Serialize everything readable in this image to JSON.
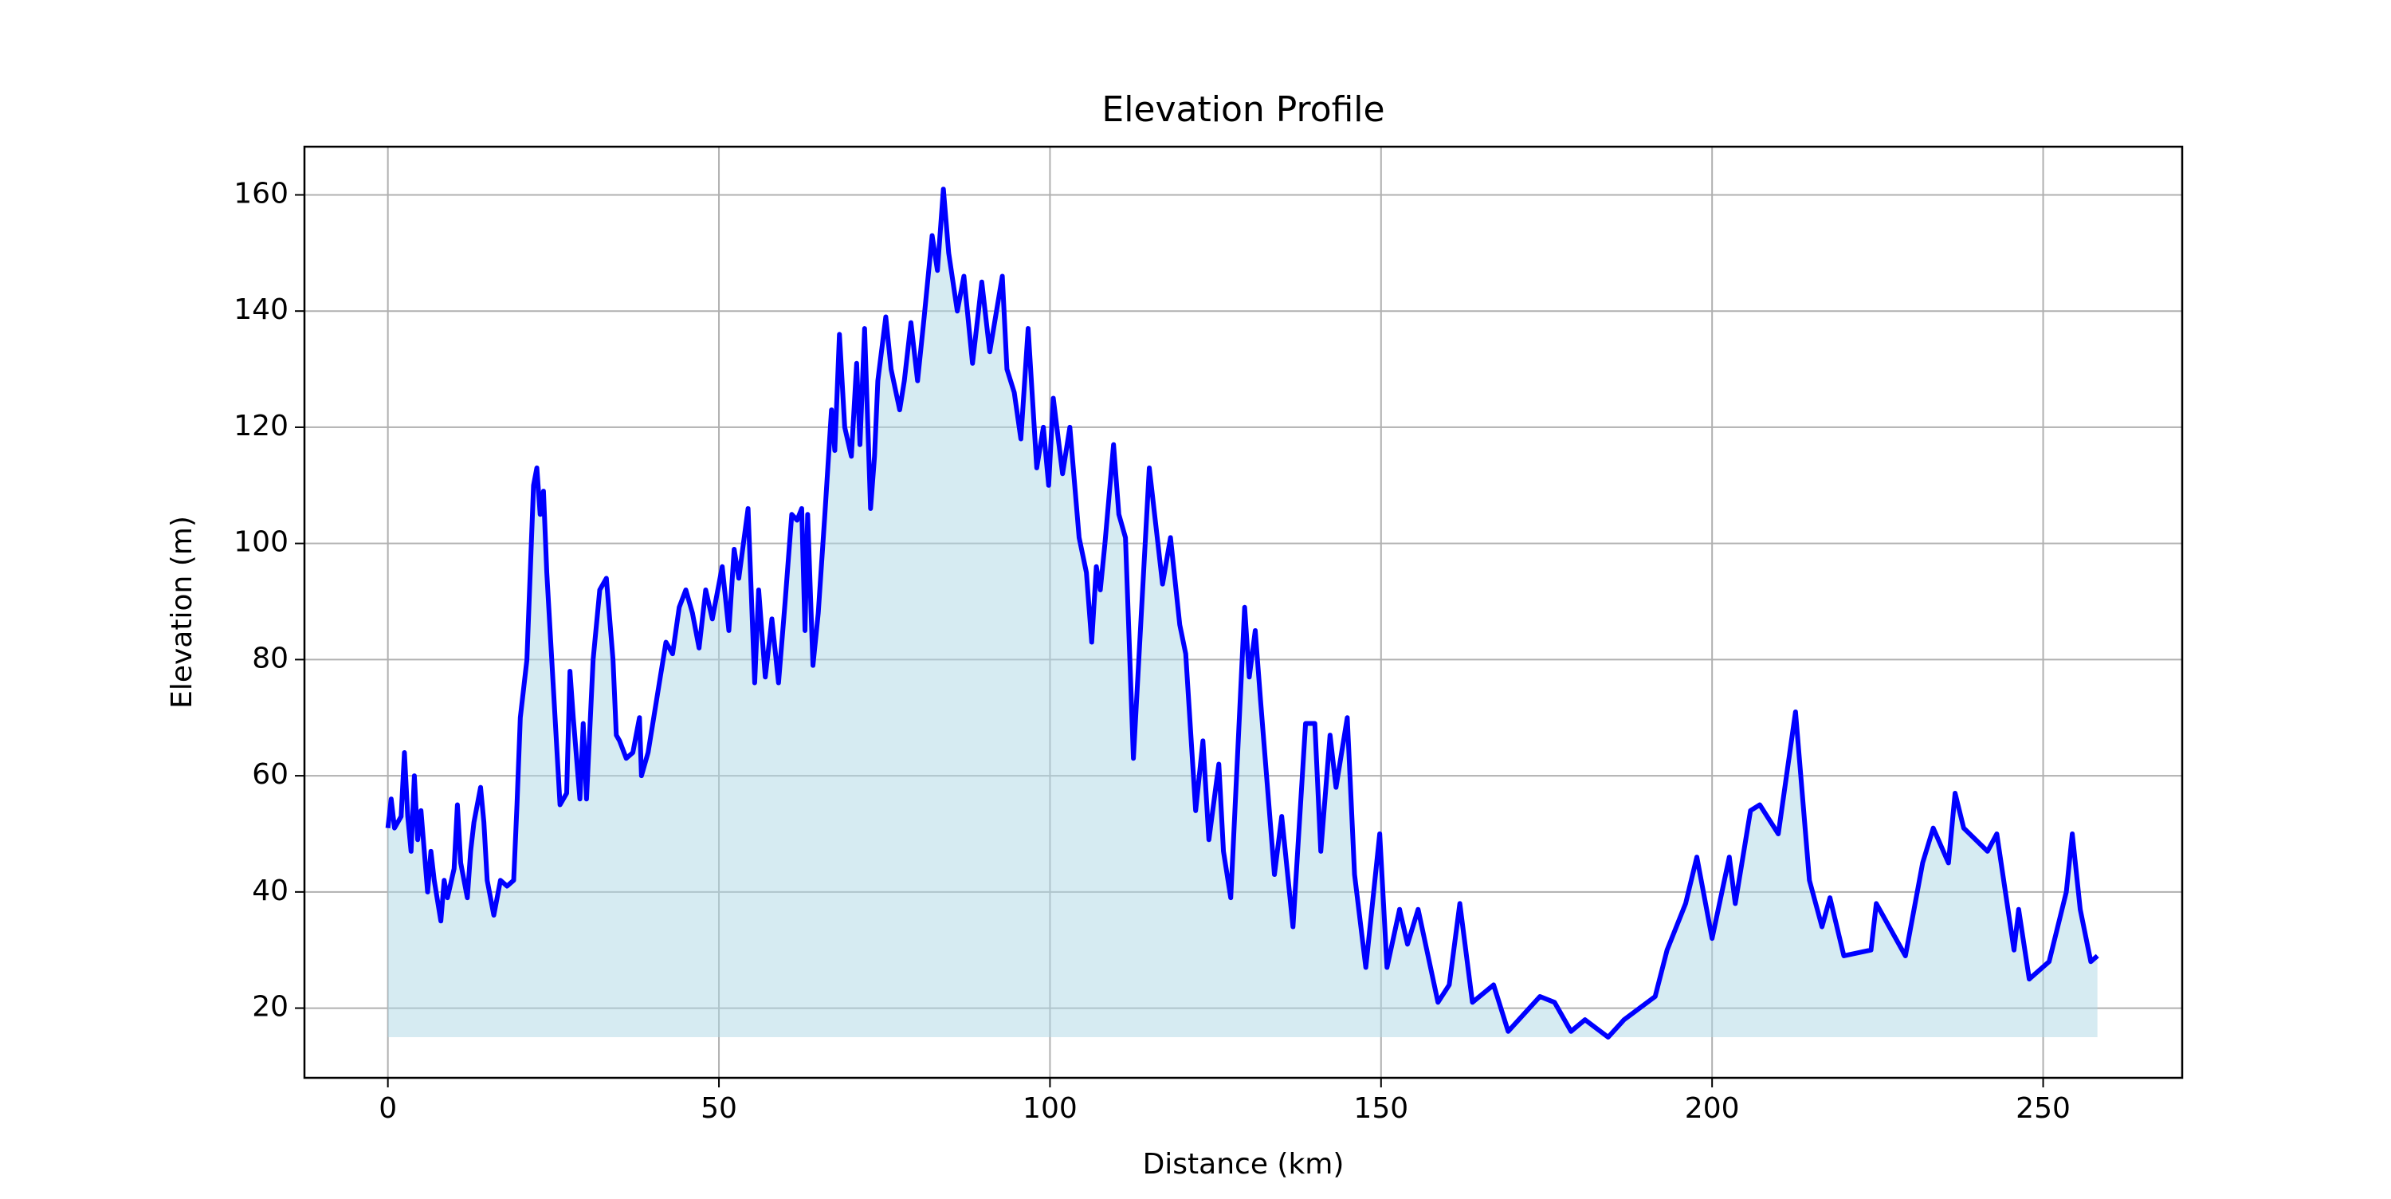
{
  "chart_data": {
    "type": "line",
    "title": "Elevation Profile",
    "xlabel": "Distance (km)",
    "ylabel": "Elevation (m)",
    "x": [
      0,
      0.5,
      1,
      2,
      2.5,
      3,
      3.5,
      4,
      4.5,
      5,
      6,
      6.5,
      7,
      8,
      8.5,
      9,
      10,
      10.5,
      11,
      12,
      12.5,
      13,
      14,
      14.5,
      15,
      16,
      17,
      18,
      19,
      19.5,
      20,
      21,
      22,
      22.5,
      23,
      23.5,
      24,
      25,
      26,
      27,
      27.5,
      28,
      29,
      29.5,
      30,
      31,
      32,
      33,
      34,
      34.5,
      35,
      36,
      37,
      38,
      38.3,
      39.3,
      41,
      42,
      43,
      44,
      45,
      46,
      47,
      48,
      49,
      50.5,
      51.5,
      52.3,
      53,
      54.4,
      55.4,
      56,
      57,
      58,
      59,
      60,
      61,
      61.8,
      62.5,
      63,
      63.4,
      64.2,
      65,
      66,
      67,
      67.5,
      68.2,
      69,
      70,
      70.8,
      71.3,
      72,
      72.9,
      73.5,
      74,
      75.2,
      76,
      77.3,
      78,
      79,
      80,
      81,
      82.2,
      83,
      83.9,
      84.7,
      86,
      87,
      88.3,
      89.7,
      90.9,
      92.8,
      93.5,
      94.6,
      95.6,
      96.7,
      98,
      99,
      99.8,
      100.5,
      101.9,
      103,
      104.4,
      105.5,
      106.3,
      107,
      107.6,
      108.3,
      109.6,
      110.4,
      111.4,
      112.6,
      113.8,
      115,
      116,
      117,
      118.2,
      119.6,
      120.5,
      122,
      123.1,
      124,
      125.5,
      126.2,
      127.3,
      129.4,
      130.1,
      131,
      131.8,
      133.9,
      135,
      136.7,
      138.6,
      140,
      140.9,
      142.3,
      143.2,
      144.9,
      146,
      147.7,
      149.8,
      150.9,
      152.8,
      154,
      155.6,
      158.6,
      160.3,
      161.9,
      163.8,
      167,
      169.2,
      174,
      176.2,
      178.7,
      180.8,
      184.3,
      186.7,
      191.4,
      193.2,
      196,
      197.7,
      200,
      202.6,
      203.5,
      205.8,
      207.2,
      210,
      212.6,
      214.7,
      216.6,
      217.8,
      219.9,
      224,
      224.8,
      229.2,
      231.8,
      233.4,
      235.7,
      236.7,
      238,
      241.6,
      243,
      245.6,
      246.3,
      247.9,
      250.9,
      253.5,
      254.4,
      255.6,
      257.2,
      258.2
    ],
    "values": [
      51,
      56,
      51,
      53,
      64,
      53,
      47,
      60,
      49,
      54,
      40,
      47,
      42,
      35,
      42,
      39,
      44,
      55,
      45,
      39,
      47,
      52,
      58,
      52,
      42,
      36,
      42,
      41,
      42,
      55,
      70,
      80,
      110,
      113,
      105,
      109,
      95,
      75,
      55,
      57,
      78,
      70,
      56,
      69,
      56,
      80,
      92,
      94,
      80,
      67,
      66,
      63,
      64,
      70,
      60,
      64,
      76,
      83,
      81,
      89,
      92,
      88,
      82,
      92,
      87,
      96,
      85,
      99,
      94,
      106,
      76,
      92,
      77,
      87,
      76,
      90,
      105,
      104,
      106,
      85,
      105,
      79,
      88,
      105,
      123,
      116,
      136,
      120,
      115,
      131,
      117,
      137,
      106,
      115,
      128,
      139,
      130,
      123,
      128,
      138,
      128,
      139,
      153,
      147,
      161,
      150,
      140,
      146,
      131,
      145,
      133,
      146,
      130,
      126,
      118,
      137,
      113,
      120,
      110,
      125,
      112,
      120,
      101,
      95,
      83,
      96,
      92,
      100,
      117,
      105,
      101,
      63,
      88,
      113,
      103,
      93,
      101,
      86,
      81,
      54,
      66,
      49,
      62,
      47,
      39,
      89,
      77,
      85,
      73,
      43,
      53,
      34,
      69,
      69,
      47,
      67,
      58,
      70,
      43,
      27,
      50,
      27,
      37,
      31,
      37,
      21,
      24,
      38,
      21,
      24,
      16,
      22,
      21,
      16,
      18,
      15,
      18,
      22,
      30,
      38,
      46,
      32,
      46,
      38,
      54,
      55,
      50,
      71,
      42,
      34,
      39,
      29,
      30,
      38,
      29,
      45,
      51,
      45,
      57,
      51,
      47,
      50,
      30,
      37,
      25,
      28,
      40,
      50,
      37,
      28,
      29
    ],
    "color": "blue",
    "fill_color": "lightblue",
    "xlim": [
      -12.6,
      271
    ],
    "ylim": [
      8,
      168.3
    ],
    "xticks": [
      0,
      50,
      100,
      150,
      200,
      250
    ],
    "yticks": [
      20,
      40,
      60,
      80,
      100,
      120,
      140,
      160
    ],
    "grid": true
  }
}
